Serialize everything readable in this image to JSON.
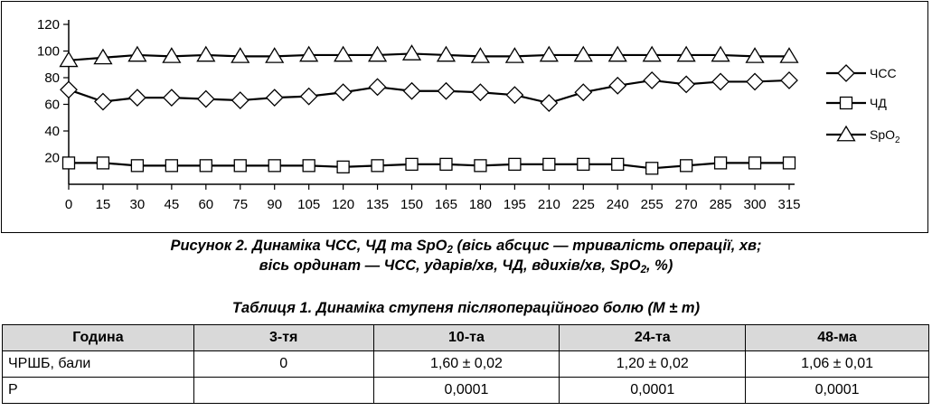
{
  "chart_data": {
    "type": "line",
    "x": [
      0,
      15,
      30,
      45,
      60,
      75,
      90,
      105,
      120,
      135,
      150,
      165,
      180,
      195,
      210,
      225,
      240,
      255,
      270,
      285,
      300,
      315
    ],
    "ylim": [
      0,
      120
    ],
    "yticks": [
      20,
      40,
      60,
      80,
      100,
      120
    ],
    "ytick_labels": [
      "20",
      "40",
      "60",
      "80",
      "100",
      "120"
    ],
    "xtick_labels": [
      "0",
      "15",
      "30",
      "45",
      "60",
      "75",
      "90",
      "105",
      "120",
      "135",
      "150",
      "165",
      "180",
      "195",
      "210",
      "225",
      "240",
      "255",
      "270",
      "285",
      "300",
      "315"
    ],
    "legend_position": "right",
    "series": [
      {
        "name": "ЧСС",
        "marker": "diamond",
        "values": [
          71,
          62,
          65,
          65,
          64,
          63,
          65,
          66,
          69,
          73,
          70,
          70,
          69,
          67,
          61,
          69,
          74,
          78,
          75,
          77,
          77,
          78
        ]
      },
      {
        "name": "ЧД",
        "marker": "square",
        "values": [
          16,
          16,
          14,
          14,
          14,
          14,
          14,
          14,
          13,
          14,
          15,
          15,
          14,
          15,
          15,
          15,
          15,
          12,
          14,
          16,
          16,
          16
        ]
      },
      {
        "name": "SpO2",
        "name_base": "SpO",
        "name_sub": "2",
        "marker": "triangle",
        "values": [
          93,
          95,
          97,
          96,
          97,
          96,
          96,
          97,
          97,
          97,
          98,
          97,
          96,
          96,
          97,
          97,
          97,
          97,
          97,
          97,
          96,
          96
        ]
      }
    ]
  },
  "figure_caption": {
    "line1_a": "Рисунок 2. Динаміка ЧСС, ЧД та SpO",
    "line1_sub": "2",
    "line1_b": " (вісь абсцис — тривалість операції, хв;",
    "line2_a": "вісь ординат — ЧСС, ударів/хв, ЧД, вдихів/хв, SpO",
    "line2_sub": "2",
    "line2_b": ", %)"
  },
  "table": {
    "title": "Таблиця 1. Динаміка ступеня післяопераційного болю (M ± m)",
    "headers": [
      "Година",
      "3-тя",
      "10-та",
      "24-та",
      "48-ма"
    ],
    "rows": [
      [
        "ЧРШБ, бали",
        "0",
        "1,60 ± 0,02",
        "1,20 ± 0,02",
        "1,06 ± 0,01"
      ],
      [
        "P",
        "",
        "0,0001",
        "0,0001",
        "0,0001"
      ]
    ]
  }
}
